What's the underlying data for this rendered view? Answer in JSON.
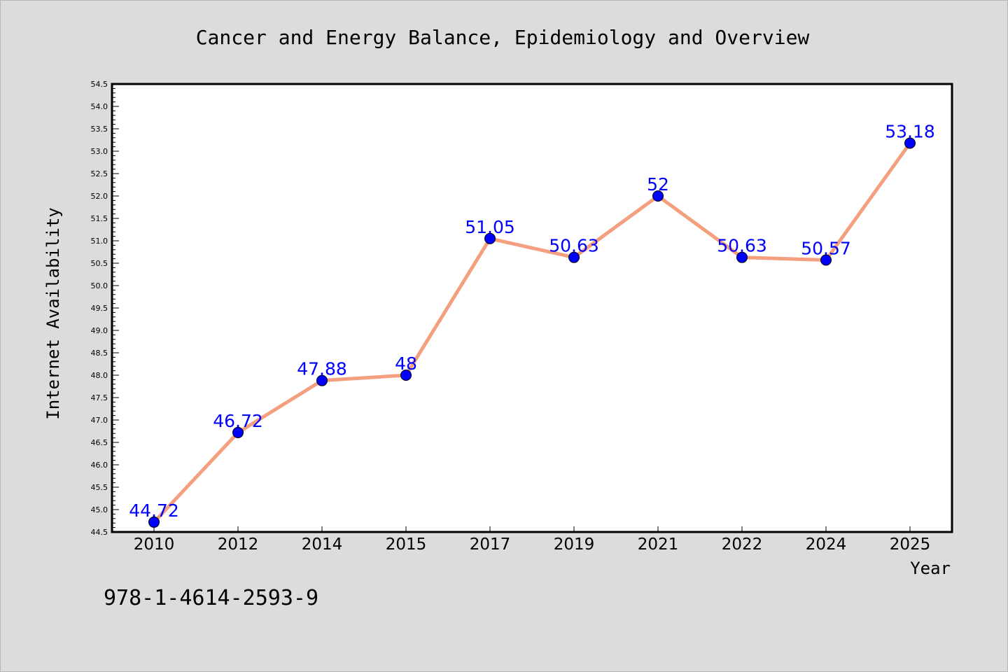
{
  "chart_data": {
    "type": "line",
    "title": "Cancer and Energy Balance, Epidemiology and Overview",
    "xlabel": "Year",
    "ylabel": "Internet Availability",
    "categories": [
      "2010",
      "2012",
      "2014",
      "2015",
      "2017",
      "2019",
      "2021",
      "2022",
      "2024",
      "2025"
    ],
    "series": [
      {
        "values": [
          44.72,
          46.72,
          47.88,
          48,
          51.05,
          50.63,
          52,
          50.63,
          50.57,
          53.18
        ],
        "data_labels": [
          "44.72",
          "46.72",
          "47.88",
          "48",
          "51.05",
          "50.63",
          "52",
          "50.63",
          "50.57",
          "53.18"
        ]
      }
    ],
    "ylim": [
      44.5,
      54.5
    ],
    "yticks": [
      "44.5",
      "45.0",
      "45.5",
      "46.0",
      "46.5",
      "47.0",
      "47.5",
      "48.0",
      "48.5",
      "49.0",
      "49.5",
      "50.0",
      "50.5",
      "51.0",
      "51.5",
      "52.0",
      "52.5",
      "53.0",
      "53.5",
      "54.0",
      "54.5"
    ],
    "grid": false,
    "line_color": "#f4a07e",
    "marker_color": "#0000ff",
    "label_color": "#0000ff",
    "background_color": "#dcdcdc",
    "plot_background": "#ffffff"
  },
  "footer": {
    "isbn": "978-1-4614-2593-9"
  }
}
